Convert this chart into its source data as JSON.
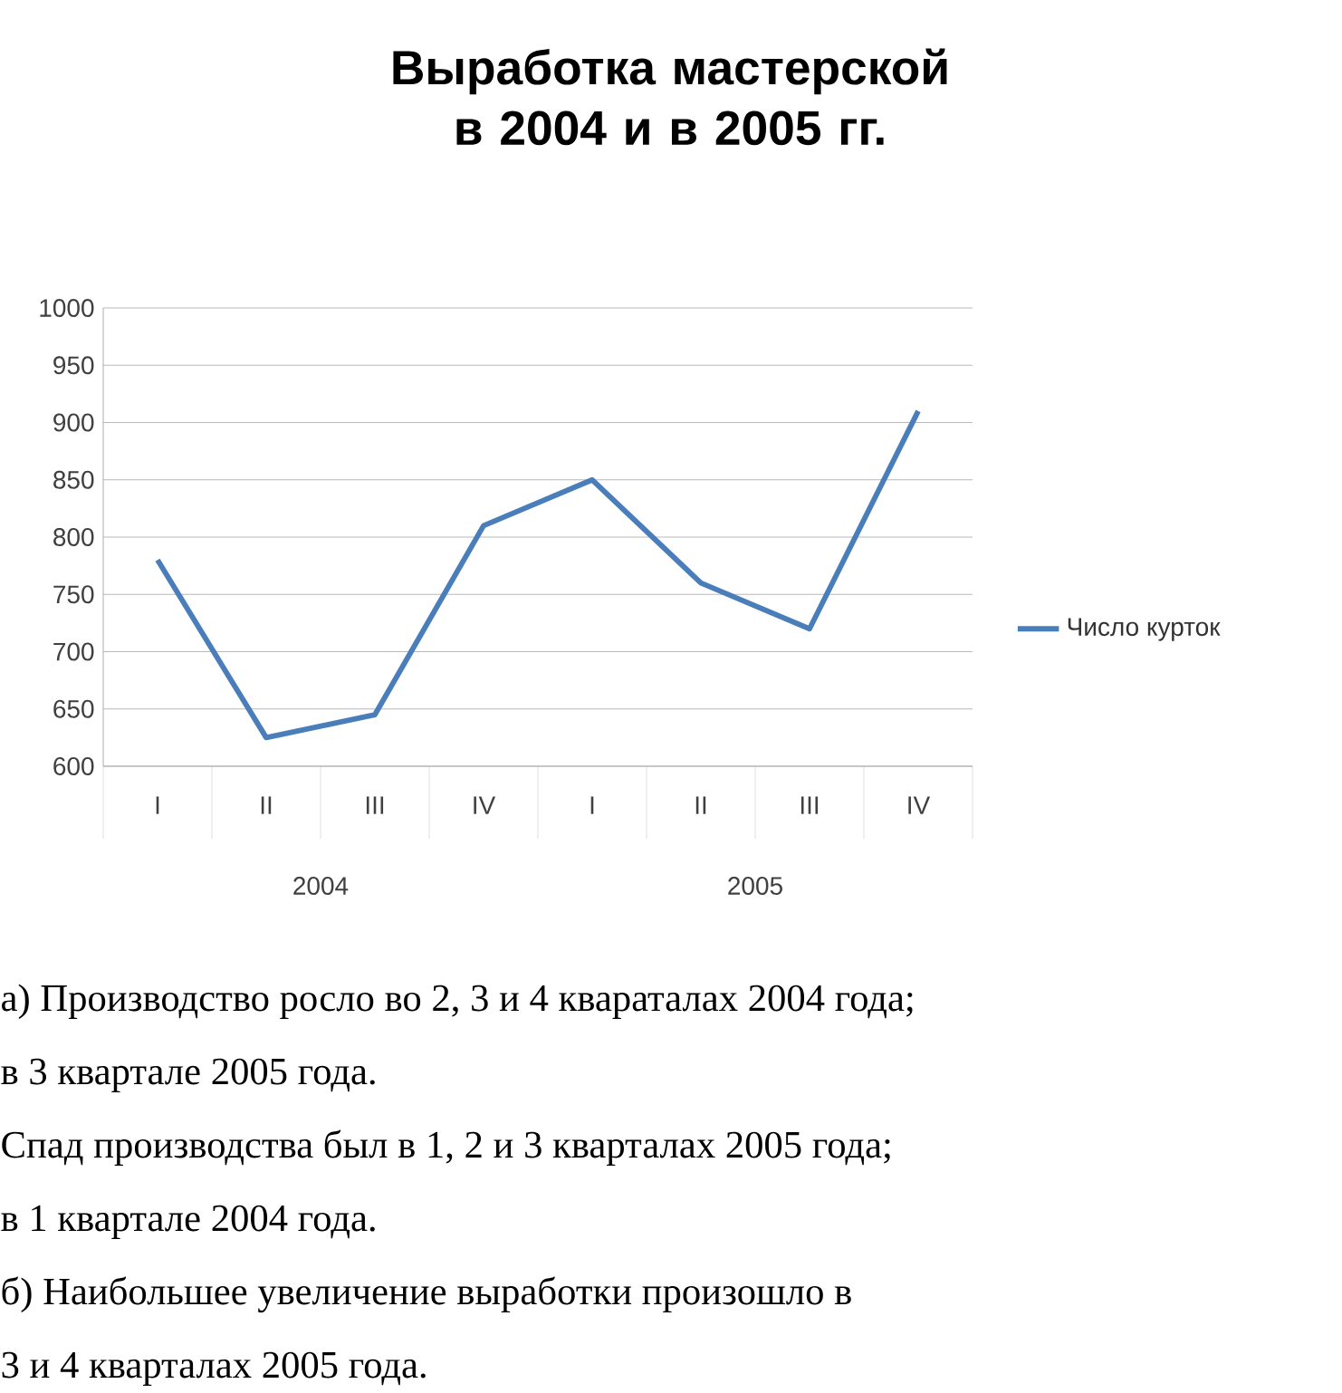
{
  "chart_data": {
    "type": "line",
    "title": "Выработка мастерской в 2004 и в 2005 гг.",
    "categories": [
      "I",
      "II",
      "III",
      "IV",
      "I",
      "II",
      "III",
      "IV"
    ],
    "series": [
      {
        "name": "Число курток",
        "color": "#4a7ebb",
        "values": [
          780,
          625,
          645,
          810,
          850,
          760,
          720,
          910
        ]
      }
    ],
    "ylim": [
      600,
      1000
    ],
    "yticks": [
      600,
      650,
      700,
      750,
      800,
      850,
      900,
      950,
      1000
    ],
    "grid": "y",
    "legend": "right",
    "marker": "none",
    "line_style": "solid",
    "annotations": [
      "2004",
      "2005",
      "а) Производство  росло во 2, 3 и 4 квараталах 2004 года;",
      "в 3 квартале 2005 года.",
      "Спад производства был в 1, 2 и 3 кварталах 2005 года;",
      "в 1 квартале 2004 года.",
      "б) Наибольшее увеличение выработки произошло в",
      "3 и 4 кварталах 2005 года."
    ]
  }
}
